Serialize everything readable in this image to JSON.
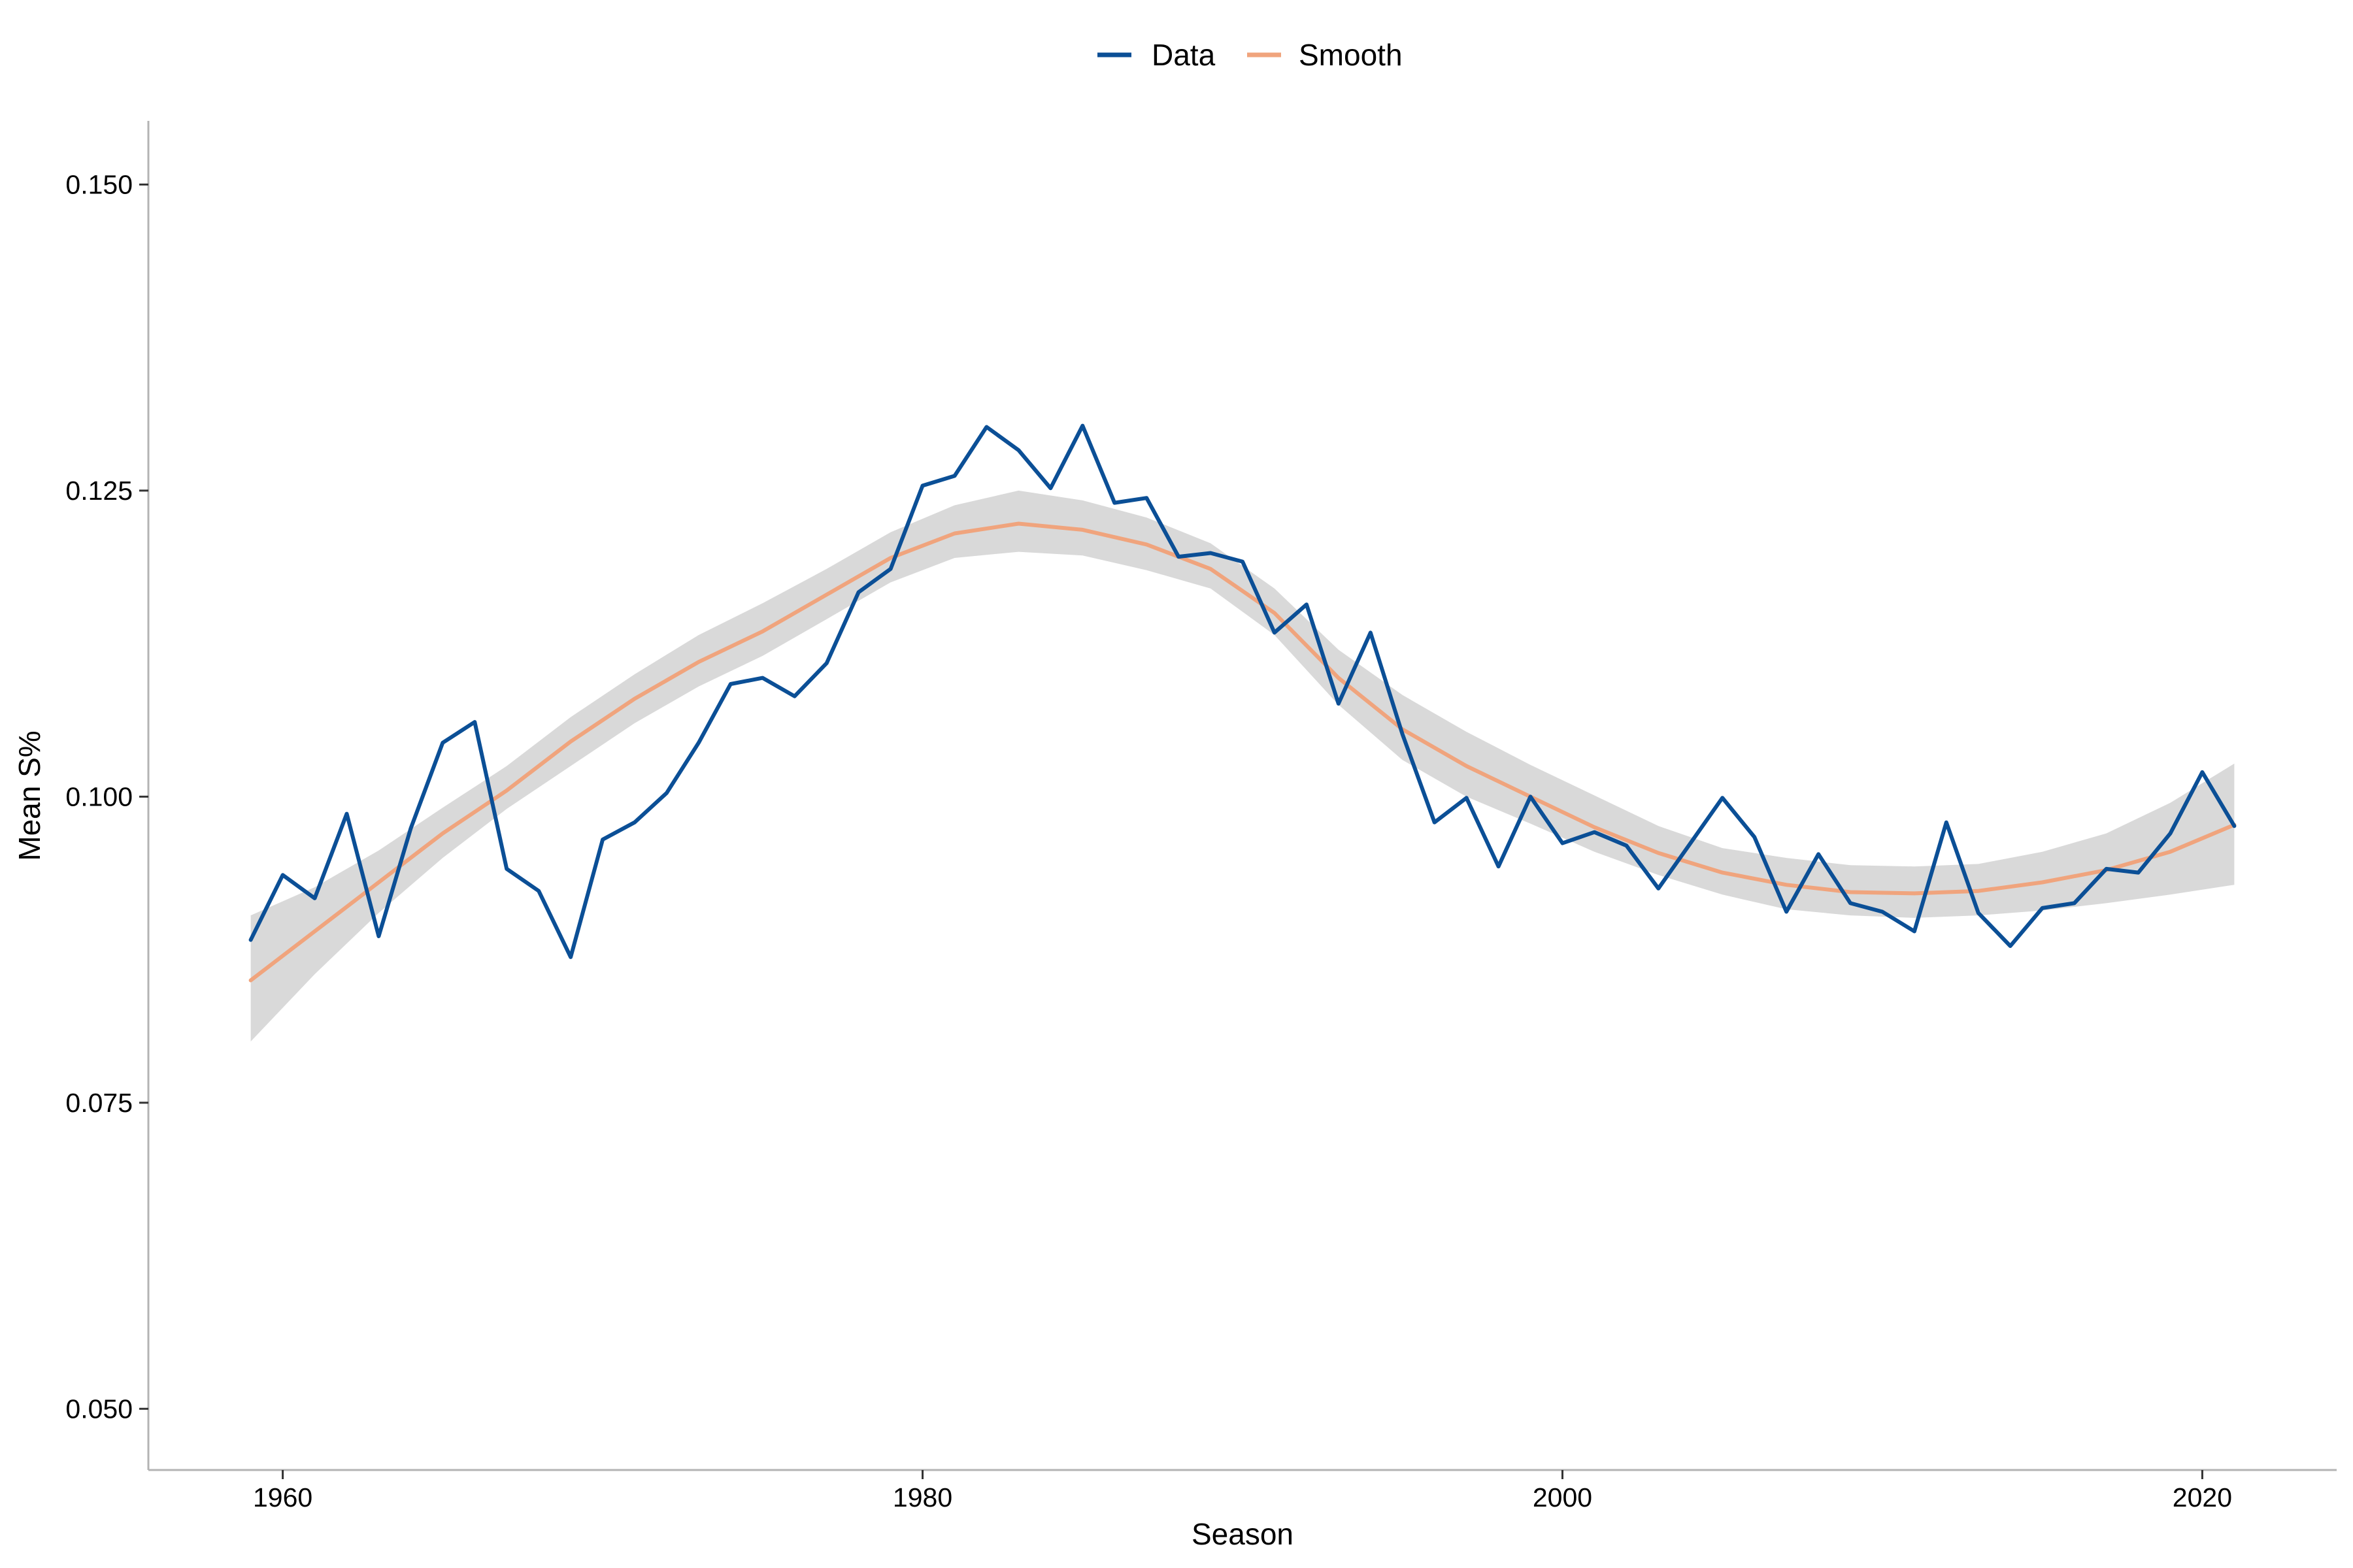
{
  "chart_data": {
    "type": "line",
    "xlabel": "Season",
    "ylabel": "Mean S%",
    "xlim": [
      1955.8,
      2024.2
    ],
    "ylim": [
      0.045,
      0.1552
    ],
    "x_ticks": [
      1960,
      1980,
      2000,
      2020
    ],
    "y_ticks": [
      0.05,
      0.075,
      0.1,
      0.125,
      0.15
    ],
    "x_tick_labels": [
      "1960",
      "1980",
      "2000",
      "2020"
    ],
    "y_tick_labels": [
      "0.050",
      "0.075",
      "0.100",
      "0.125",
      "0.150"
    ],
    "grid": false,
    "legend": {
      "position": "top",
      "entries": [
        "Data",
        "Smooth"
      ]
    },
    "colors": {
      "data": "#0b4f96",
      "smooth": "#f0a47d",
      "band": "#d9d9d9",
      "axis": "#b3b3b3"
    },
    "series": [
      {
        "name": "Data",
        "x": [
          1959,
          1960,
          1961,
          1962,
          1963,
          1964,
          1965,
          1966,
          1967,
          1968,
          1969,
          1970,
          1971,
          1972,
          1973,
          1974,
          1975,
          1976,
          1977,
          1978,
          1979,
          1980,
          1981,
          1982,
          1983,
          1984,
          1985,
          1986,
          1987,
          1988,
          1989,
          1990,
          1991,
          1992,
          1993,
          1994,
          1995,
          1996,
          1997,
          1998,
          1999,
          2000,
          2001,
          2002,
          2003,
          2004,
          2005,
          2006,
          2007,
          2008,
          2009,
          2010,
          2011,
          2012,
          2013,
          2014,
          2015,
          2016,
          2017,
          2018,
          2019,
          2020,
          2021
        ],
        "values": [
          0.0883,
          0.0936,
          0.0917,
          0.0986,
          0.0886,
          0.0974,
          0.1044,
          0.1061,
          0.0941,
          0.0923,
          0.0869,
          0.0965,
          0.0979,
          0.1003,
          0.1044,
          0.1092,
          0.1097,
          0.1082,
          0.1109,
          0.1167,
          0.1186,
          0.1254,
          0.1262,
          0.1302,
          0.1283,
          0.1252,
          0.1303,
          0.124,
          0.1244,
          0.1196,
          0.1199,
          0.1192,
          0.1134,
          0.1157,
          0.1076,
          0.1134,
          0.1051,
          0.0979,
          0.0999,
          0.0943,
          0.1,
          0.0962,
          0.0971,
          0.096,
          0.0925,
          0.0962,
          0.0999,
          0.0967,
          0.0906,
          0.0953,
          0.0913,
          0.0906,
          0.089,
          0.0979,
          0.0905,
          0.0878,
          0.0909,
          0.0913,
          0.0941,
          0.0938,
          0.097,
          0.102,
          0.0976
        ]
      },
      {
        "name": "Smooth",
        "x": [
          1959,
          1961,
          1963,
          1965,
          1967,
          1969,
          1971,
          1973,
          1975,
          1977,
          1979,
          1981,
          1983,
          1985,
          1987,
          1989,
          1991,
          1993,
          1995,
          1997,
          1999,
          2001,
          2003,
          2005,
          2007,
          2009,
          2011,
          2013,
          2015,
          2017,
          2019,
          2021
        ],
        "values": [
          0.085,
          0.089,
          0.093,
          0.097,
          0.1005,
          0.1045,
          0.108,
          0.111,
          0.1135,
          0.1165,
          0.1195,
          0.1215,
          0.1223,
          0.1218,
          0.1206,
          0.1186,
          0.115,
          0.1097,
          0.1055,
          0.1025,
          0.1,
          0.0975,
          0.0954,
          0.0938,
          0.0928,
          0.0922,
          0.0921,
          0.0923,
          0.093,
          0.094,
          0.0955,
          0.0977
        ],
        "band_lower": [
          0.08,
          0.0855,
          0.0905,
          0.095,
          0.099,
          0.1025,
          0.106,
          0.109,
          0.1115,
          0.1145,
          0.1175,
          0.1195,
          0.12,
          0.1197,
          0.1185,
          0.117,
          0.1132,
          0.1075,
          0.103,
          0.1,
          0.0978,
          0.0955,
          0.0936,
          0.092,
          0.0908,
          0.0903,
          0.0901,
          0.0903,
          0.0907,
          0.0913,
          0.092,
          0.0928
        ],
        "band_upper": [
          0.0903,
          0.0926,
          0.0956,
          0.0991,
          0.1025,
          0.1065,
          0.11,
          0.1132,
          0.1158,
          0.1186,
          0.1216,
          0.1238,
          0.125,
          0.1242,
          0.1228,
          0.1207,
          0.117,
          0.112,
          0.1083,
          0.1053,
          0.1026,
          0.1001,
          0.0976,
          0.0958,
          0.095,
          0.0944,
          0.0943,
          0.0945,
          0.0955,
          0.097,
          0.0995,
          0.1027
        ]
      }
    ]
  }
}
